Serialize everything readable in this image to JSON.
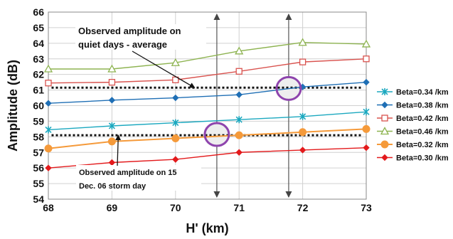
{
  "chart_data": {
    "type": "line",
    "xlabel": "H' (km)",
    "ylabel": "Amplitude (dB)",
    "xlim": [
      68,
      73
    ],
    "ylim": [
      54,
      66
    ],
    "x_ticks": [
      "68",
      "69",
      "70",
      "71",
      "72",
      "73"
    ],
    "y_ticks": [
      "54",
      "55",
      "56",
      "57",
      "58",
      "59",
      "60",
      "61",
      "62",
      "63",
      "64",
      "65",
      "66"
    ],
    "grid": true,
    "legend_position": "right",
    "x": [
      68,
      69,
      70,
      71,
      72,
      73
    ],
    "series": [
      {
        "name": "Beta=0.34 /km",
        "color": "#1ba8bf",
        "marker": "x",
        "values": [
          58.45,
          58.7,
          58.9,
          59.1,
          59.3,
          59.6
        ]
      },
      {
        "name": "Beta=0.38 /km",
        "color": "#1f6fb5",
        "marker": "diamond",
        "values": [
          60.15,
          60.35,
          60.5,
          60.7,
          61.2,
          61.5
        ]
      },
      {
        "name": "Beta=0.42 /km",
        "color": "#d9534f",
        "marker": "square-open",
        "values": [
          61.45,
          61.5,
          61.65,
          62.2,
          62.8,
          63.0
        ]
      },
      {
        "name": "Beta=0.46 /km",
        "color": "#8db350",
        "marker": "triangle-open",
        "values": [
          62.35,
          62.35,
          62.75,
          63.5,
          64.05,
          63.95
        ]
      },
      {
        "name": "Beta=0.32 /km",
        "color": "#f59a3a",
        "marker": "circle",
        "values": [
          57.25,
          57.7,
          57.9,
          58.1,
          58.3,
          58.5
        ]
      },
      {
        "name": "Beta=0.30 /km",
        "color": "#e31a1c",
        "marker": "diamond",
        "values": [
          56.0,
          56.35,
          56.55,
          57.0,
          57.15,
          57.3
        ]
      }
    ],
    "reference_lines": [
      {
        "y": 61.15,
        "style": "dotted",
        "color": "#111111"
      },
      {
        "y": 58.1,
        "style": "dotted",
        "color": "#111111"
      }
    ],
    "vertical_markers": [
      70.65,
      71.78
    ],
    "highlight_circles": [
      {
        "x": 71.78,
        "y": 61.1,
        "color": "#8e44ad"
      },
      {
        "x": 70.65,
        "y": 58.15,
        "color": "#8e44ad"
      }
    ],
    "annotations": [
      {
        "lines": [
          "Observed amplitude on",
          "quiet days - average"
        ],
        "arrow_to": {
          "x": 70.3,
          "y": 61.15
        }
      },
      {
        "lines": [
          "Observed amplitude on 15",
          "Dec. 06 storm day"
        ],
        "arrow_to": {
          "x": 69.1,
          "y": 58.1
        }
      }
    ]
  }
}
